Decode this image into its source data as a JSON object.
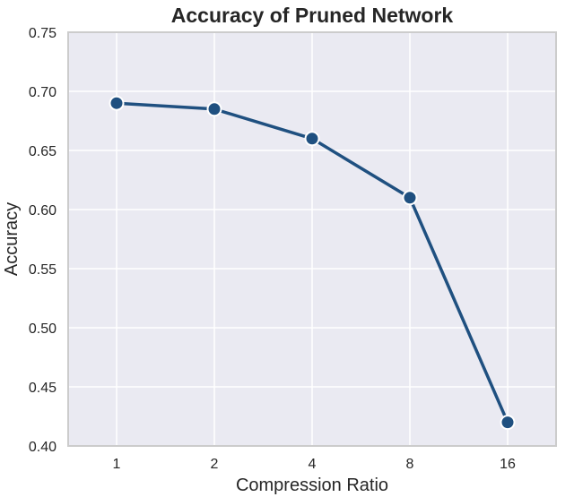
{
  "chart_data": {
    "type": "line",
    "title": "Accuracy of Pruned Network",
    "xlabel": "Compression Ratio",
    "ylabel": "Accuracy",
    "categories": [
      "1",
      "2",
      "4",
      "8",
      "16"
    ],
    "series": [
      {
        "values": [
          0.69,
          0.685,
          0.66,
          0.61,
          0.42
        ]
      }
    ],
    "ylim": [
      0.4,
      0.75
    ],
    "yticks": [
      "0.40",
      "0.45",
      "0.50",
      "0.55",
      "0.60",
      "0.65",
      "0.70",
      "0.75"
    ],
    "grid": true,
    "colors": {
      "line": "#1f5080",
      "plot_background": "#eaeaf2",
      "grid": "#ffffff",
      "frame": "#cccccc"
    }
  }
}
